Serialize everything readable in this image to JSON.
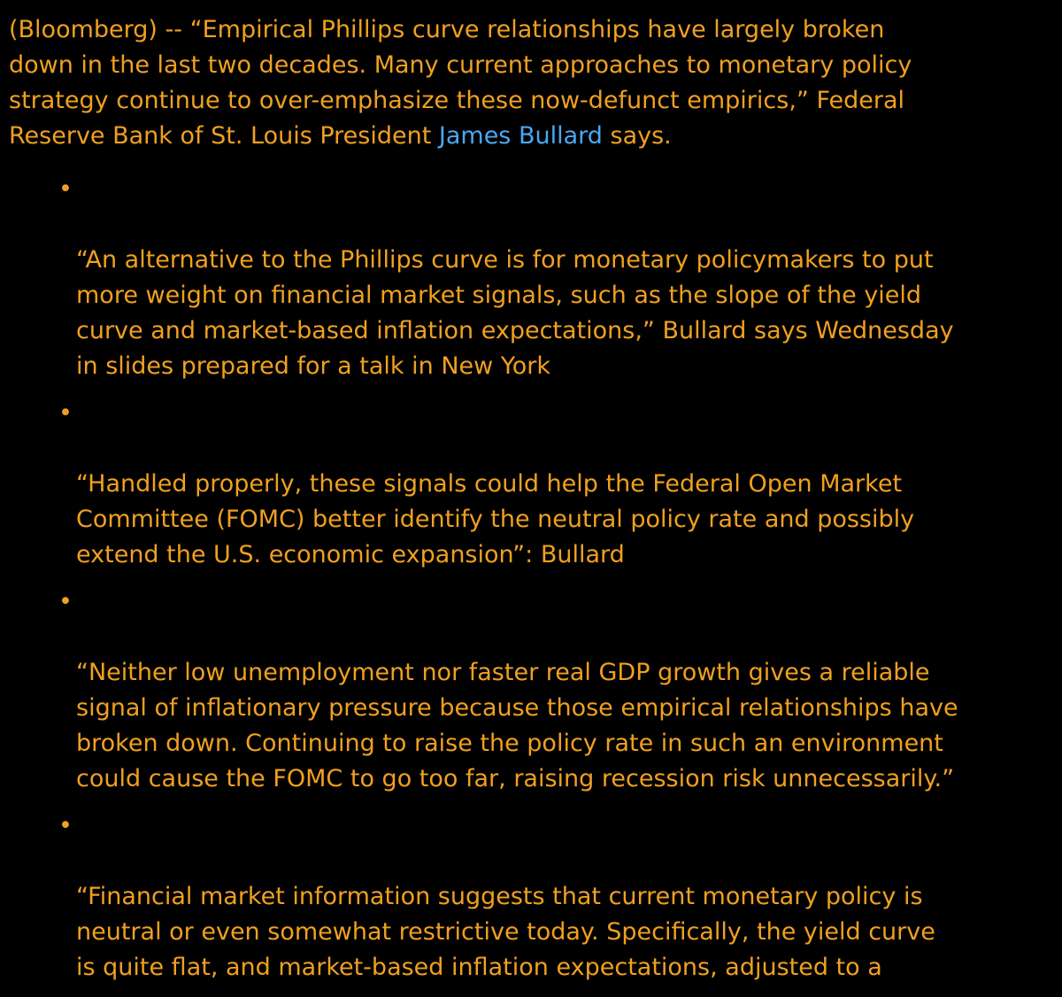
{
  "colors": {
    "background": "#000000",
    "text": "#f0a020",
    "link": "#4aa8f0"
  },
  "article": {
    "lead_before": "(Bloomberg) -- “Empirical Phillips curve relationships have largely broken\ndown in the last two decades. Many current approaches to monetary policy\nstrategy continue to over-emphasize these now-defunct empirics,” Federal\nReserve Bank of St. Louis President ",
    "lead_link": "James Bullard",
    "lead_after": " says.",
    "bullet_glyph": "•",
    "bullets": [
      "“An alternative to the Phillips curve is for monetary policymakers to put\nmore weight on financial market signals, such as the slope of the yield\ncurve and market-based inflation expectations,” Bullard says Wednesday\nin slides prepared for a talk in New York",
      "“Handled properly, these signals could help the Federal Open Market\nCommittee (FOMC) better identify the neutral policy rate and possibly\nextend the U.S. economic expansion”: Bullard",
      "“Neither low unemployment nor faster real GDP growth gives a reliable\nsignal of inflationary pressure because those empirical relationships have\nbroken down. Continuing to raise the policy rate in such an environment\ncould cause the FOMC to go too far, raising recession risk unnecessarily.”",
      "“Financial market information suggests that current monetary policy is\nneutral or even somewhat restrictive today. Specifically, the yield curve\nis quite flat, and market-based inflation expectations, adjusted to a"
    ]
  }
}
